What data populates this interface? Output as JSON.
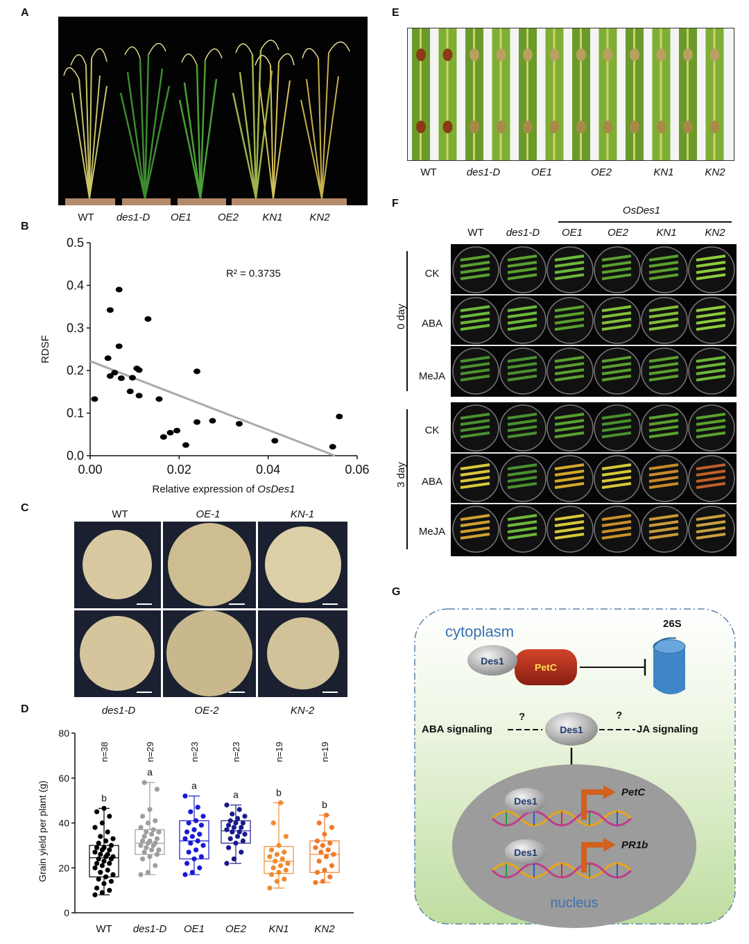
{
  "panels": {
    "a": "A",
    "b": "B",
    "c": "C",
    "d": "D",
    "e": "E",
    "f": "F",
    "g": "G"
  },
  "genotypes": [
    "WT",
    "des1-D",
    "OE1",
    "OE2",
    "KN1",
    "KN2"
  ],
  "panel_c": {
    "top_labels": [
      "WT",
      "OE-1",
      "KN-1"
    ],
    "bottom_labels": [
      "des1-D",
      "OE-2",
      "KN-2"
    ]
  },
  "panel_f": {
    "gene": "OsDes1",
    "columns": [
      "WT",
      "des1-D",
      "OE1",
      "OE2",
      "KN1",
      "KN2"
    ],
    "groups": [
      {
        "day": "0 day",
        "treatments": [
          "CK",
          "ABA",
          "MeJA"
        ]
      },
      {
        "day": "3 day",
        "treatments": [
          "CK",
          "ABA",
          "MeJA"
        ]
      }
    ]
  },
  "panel_g": {
    "cytoplasm": "cytoplasm",
    "proteasome": "26S",
    "des1": "Des1",
    "petc": "PetC",
    "aba": "ABA signaling",
    "ja": "JA signaling",
    "question": "?",
    "target1": "PetC",
    "target2": "PR1b",
    "nucleus": "nucleus"
  },
  "colors": {
    "wt": "#000000",
    "des1d": "#9e9e9e",
    "oe1": "#1a1ad6",
    "oe2": "#1a1a8c",
    "kn1": "#f08c2e",
    "kn2": "#f07a2a"
  },
  "chart_data": [
    {
      "type": "scatter",
      "panel": "B",
      "xlabel_prefix": "Relative expression of ",
      "xlabel_gene": "OsDes1",
      "ylabel": "RDSF",
      "xlim": [
        0,
        0.06
      ],
      "ylim": [
        0,
        0.5
      ],
      "xticks": [
        "0.00",
        "0.02",
        "0.04",
        "0.06"
      ],
      "yticks": [
        "0.0",
        "0.1",
        "0.2",
        "0.3",
        "0.4",
        "0.5"
      ],
      "annotation": "R² = 0.3735",
      "trend": {
        "x": [
          0.0,
          0.055
        ],
        "y": [
          0.222,
          0.0
        ]
      },
      "points": [
        [
          0.001,
          0.133
        ],
        [
          0.004,
          0.229
        ],
        [
          0.0045,
          0.342
        ],
        [
          0.0045,
          0.187
        ],
        [
          0.0055,
          0.195
        ],
        [
          0.0065,
          0.39
        ],
        [
          0.0065,
          0.257
        ],
        [
          0.007,
          0.182
        ],
        [
          0.009,
          0.151
        ],
        [
          0.0095,
          0.183
        ],
        [
          0.0105,
          0.205
        ],
        [
          0.011,
          0.201
        ],
        [
          0.011,
          0.141
        ],
        [
          0.013,
          0.321
        ],
        [
          0.0155,
          0.133
        ],
        [
          0.0165,
          0.044
        ],
        [
          0.018,
          0.054
        ],
        [
          0.0195,
          0.059
        ],
        [
          0.0215,
          0.025
        ],
        [
          0.024,
          0.198
        ],
        [
          0.024,
          0.079
        ],
        [
          0.0275,
          0.082
        ],
        [
          0.0335,
          0.075
        ],
        [
          0.0415,
          0.035
        ],
        [
          0.0545,
          0.021
        ],
        [
          0.056,
          0.092
        ]
      ]
    },
    {
      "type": "box",
      "panel": "D",
      "ylabel": "Grain yield per plant (g)",
      "ylim": [
        0,
        80
      ],
      "yticks": [
        "0",
        "20",
        "40",
        "60",
        "80"
      ],
      "categories": [
        "WT",
        "des1-D",
        "OE1",
        "OE2",
        "KN1",
        "KN2"
      ],
      "n_labels": [
        "n=38",
        "n=29",
        "n=23",
        "n=23",
        "n=19",
        "n=19"
      ],
      "letters": [
        "b",
        "a",
        "a",
        "a",
        "b",
        "b"
      ],
      "boxes": [
        {
          "min": 8,
          "q1": 16,
          "median": 24.5,
          "q3": 30,
          "max": 46.5
        },
        {
          "min": 17,
          "q1": 26,
          "median": 31,
          "q3": 37,
          "max": 58
        },
        {
          "min": 17,
          "q1": 24,
          "median": 32,
          "q3": 41,
          "max": 52
        },
        {
          "min": 22,
          "q1": 31,
          "median": 36.5,
          "q3": 41,
          "max": 48
        },
        {
          "min": 11,
          "q1": 17.5,
          "median": 23,
          "q3": 29.5,
          "max": 49
        },
        {
          "min": 13.5,
          "q1": 18,
          "median": 26,
          "q3": 32,
          "max": 43.5
        }
      ],
      "points": [
        [
          8,
          9,
          10,
          11,
          13,
          14,
          15,
          16,
          17,
          18,
          19,
          20,
          21,
          22,
          22,
          23,
          24,
          24,
          25,
          25,
          26,
          26,
          27,
          28,
          28,
          29,
          29,
          30,
          31,
          32,
          33,
          34,
          36,
          38,
          40,
          43,
          45,
          46.5
        ],
        [
          17,
          18,
          21,
          24,
          25,
          26,
          27,
          28,
          28,
          29,
          30,
          30,
          31,
          31,
          32,
          32,
          33,
          34,
          35,
          36,
          36,
          37,
          38,
          40,
          41,
          43,
          46,
          55,
          58
        ],
        [
          17,
          18,
          20,
          22,
          24,
          25,
          27,
          28,
          30,
          31,
          32,
          33,
          34,
          35,
          36,
          37,
          39,
          40,
          41,
          43,
          45,
          47,
          52
        ],
        [
          22,
          24,
          27,
          29,
          31,
          32,
          33,
          34,
          35,
          36,
          36,
          37,
          38,
          38,
          39,
          40,
          40,
          41,
          42,
          43,
          44,
          46,
          48
        ],
        [
          11,
          14,
          15,
          17,
          18,
          19,
          20,
          21,
          22,
          23,
          24,
          25,
          26,
          27,
          28,
          30,
          34,
          40,
          49
        ],
        [
          13.5,
          14,
          16,
          18,
          19,
          21,
          23,
          25,
          26,
          27,
          28,
          29,
          30,
          31,
          32,
          35,
          38,
          40,
          43.5
        ]
      ]
    }
  ]
}
